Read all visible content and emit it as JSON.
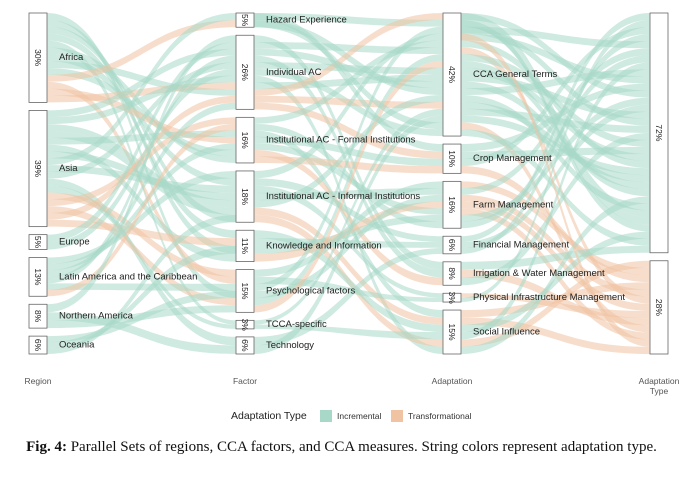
{
  "chart_data": {
    "type": "parallel-sets",
    "axes": [
      "Region",
      "Factor",
      "Adaptation",
      "Adaptation Type"
    ],
    "legend": {
      "title": "Adaptation Type",
      "items": [
        {
          "name": "Incremental",
          "color": "#a8d8c8"
        },
        {
          "name": "Transformational",
          "color": "#f0c3a3"
        }
      ],
      "placement": "bottom-center"
    },
    "nodes": {
      "region": [
        {
          "label": "Africa",
          "pct": "30%",
          "value": 30
        },
        {
          "label": "Asia",
          "pct": "39%",
          "value": 39
        },
        {
          "label": "Europe",
          "pct": "5%",
          "value": 5
        },
        {
          "label": "Latin America and the Caribbean",
          "pct": "13%",
          "value": 13
        },
        {
          "label": "Northern America",
          "pct": "8%",
          "value": 8
        },
        {
          "label": "Oceania",
          "pct": "6%",
          "value": 6
        }
      ],
      "factor": [
        {
          "label": "Hazard Experience",
          "pct": "5%",
          "value": 5
        },
        {
          "label": "Individual AC",
          "pct": "26%",
          "value": 26
        },
        {
          "label": "Institutional AC - Formal Institutions",
          "pct": "16%",
          "value": 16
        },
        {
          "label": "Institutional AC - Informal Institutions",
          "pct": "18%",
          "value": 18
        },
        {
          "label": "Knowledge and Information",
          "pct": "11%",
          "value": 11
        },
        {
          "label": "Psychological factors",
          "pct": "15%",
          "value": 15
        },
        {
          "label": "TCCA-specific",
          "pct": "3%",
          "value": 3
        },
        {
          "label": "Technology",
          "pct": "6%",
          "value": 6
        }
      ],
      "adaptation": [
        {
          "label": "CCA General Terms",
          "pct": "42%",
          "value": 42
        },
        {
          "label": "Crop Management",
          "pct": "10%",
          "value": 10
        },
        {
          "label": "Farm Management",
          "pct": "16%",
          "value": 16
        },
        {
          "label": "Financial Management",
          "pct": "6%",
          "value": 6
        },
        {
          "label": "Irrigation & Water Management",
          "pct": "8%",
          "value": 8
        },
        {
          "label": "Physical Infrastructure Management",
          "pct": "3%",
          "value": 3
        },
        {
          "label": "Social Influence",
          "pct": "15%",
          "value": 15
        }
      ],
      "type": [
        {
          "label": "",
          "pct": "72%",
          "value": 72
        },
        {
          "label": "",
          "pct": "28%",
          "value": 28
        }
      ]
    }
  },
  "caption": {
    "fig_label": "Fig. 4:",
    "text": " Parallel Sets of regions, CCA factors, and CCA measures. String colors represent adaptation type."
  }
}
